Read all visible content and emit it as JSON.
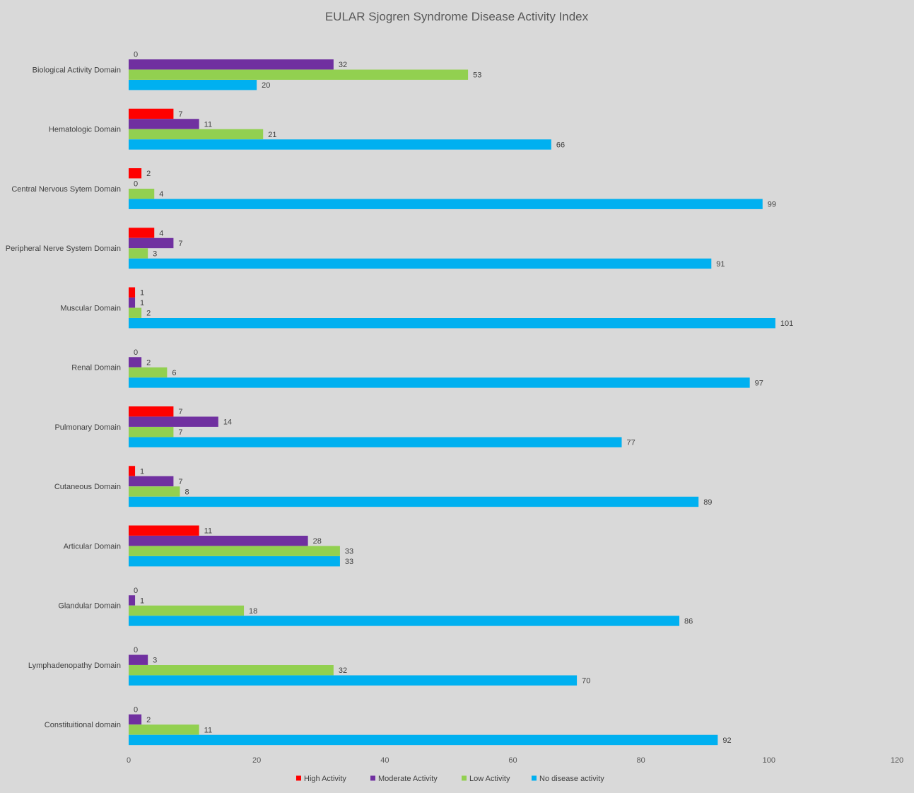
{
  "chart_data": {
    "type": "bar",
    "orientation": "horizontal",
    "title": "EULAR Sjogren Syndrome Disease Activity Index",
    "categories": [
      "Biological Activity Domain",
      "Hematologic Domain",
      "Central Nervous Sytem Domain",
      "Peripheral Nerve System Domain",
      "Muscular Domain",
      "Renal Domain",
      "Pulmonary Domain",
      "Cutaneous Domain",
      "Articular Domain",
      "Glandular Domain",
      "Lymphadenopathy Domain",
      "Constituitional domain"
    ],
    "series": [
      {
        "name": "High Activity",
        "color": "#ff0000",
        "values": [
          0,
          7,
          2,
          4,
          1,
          0,
          7,
          1,
          11,
          0,
          0,
          0
        ]
      },
      {
        "name": "Moderate Activity",
        "color": "#7030a0",
        "values": [
          32,
          11,
          0,
          7,
          1,
          2,
          14,
          7,
          28,
          1,
          3,
          2
        ]
      },
      {
        "name": "Low Activity",
        "color": "#92d050",
        "values": [
          53,
          21,
          4,
          3,
          2,
          6,
          7,
          8,
          33,
          18,
          32,
          11
        ]
      },
      {
        "name": "No disease activity",
        "color": "#00b0f0",
        "values": [
          20,
          66,
          99,
          91,
          101,
          97,
          77,
          89,
          33,
          86,
          70,
          92
        ]
      }
    ],
    "xlim": [
      0,
      120
    ],
    "xticks": [
      0,
      20,
      40,
      60,
      80,
      100,
      120
    ],
    "grid": false,
    "legend_position": "bottom",
    "xlabel": "",
    "ylabel": ""
  }
}
